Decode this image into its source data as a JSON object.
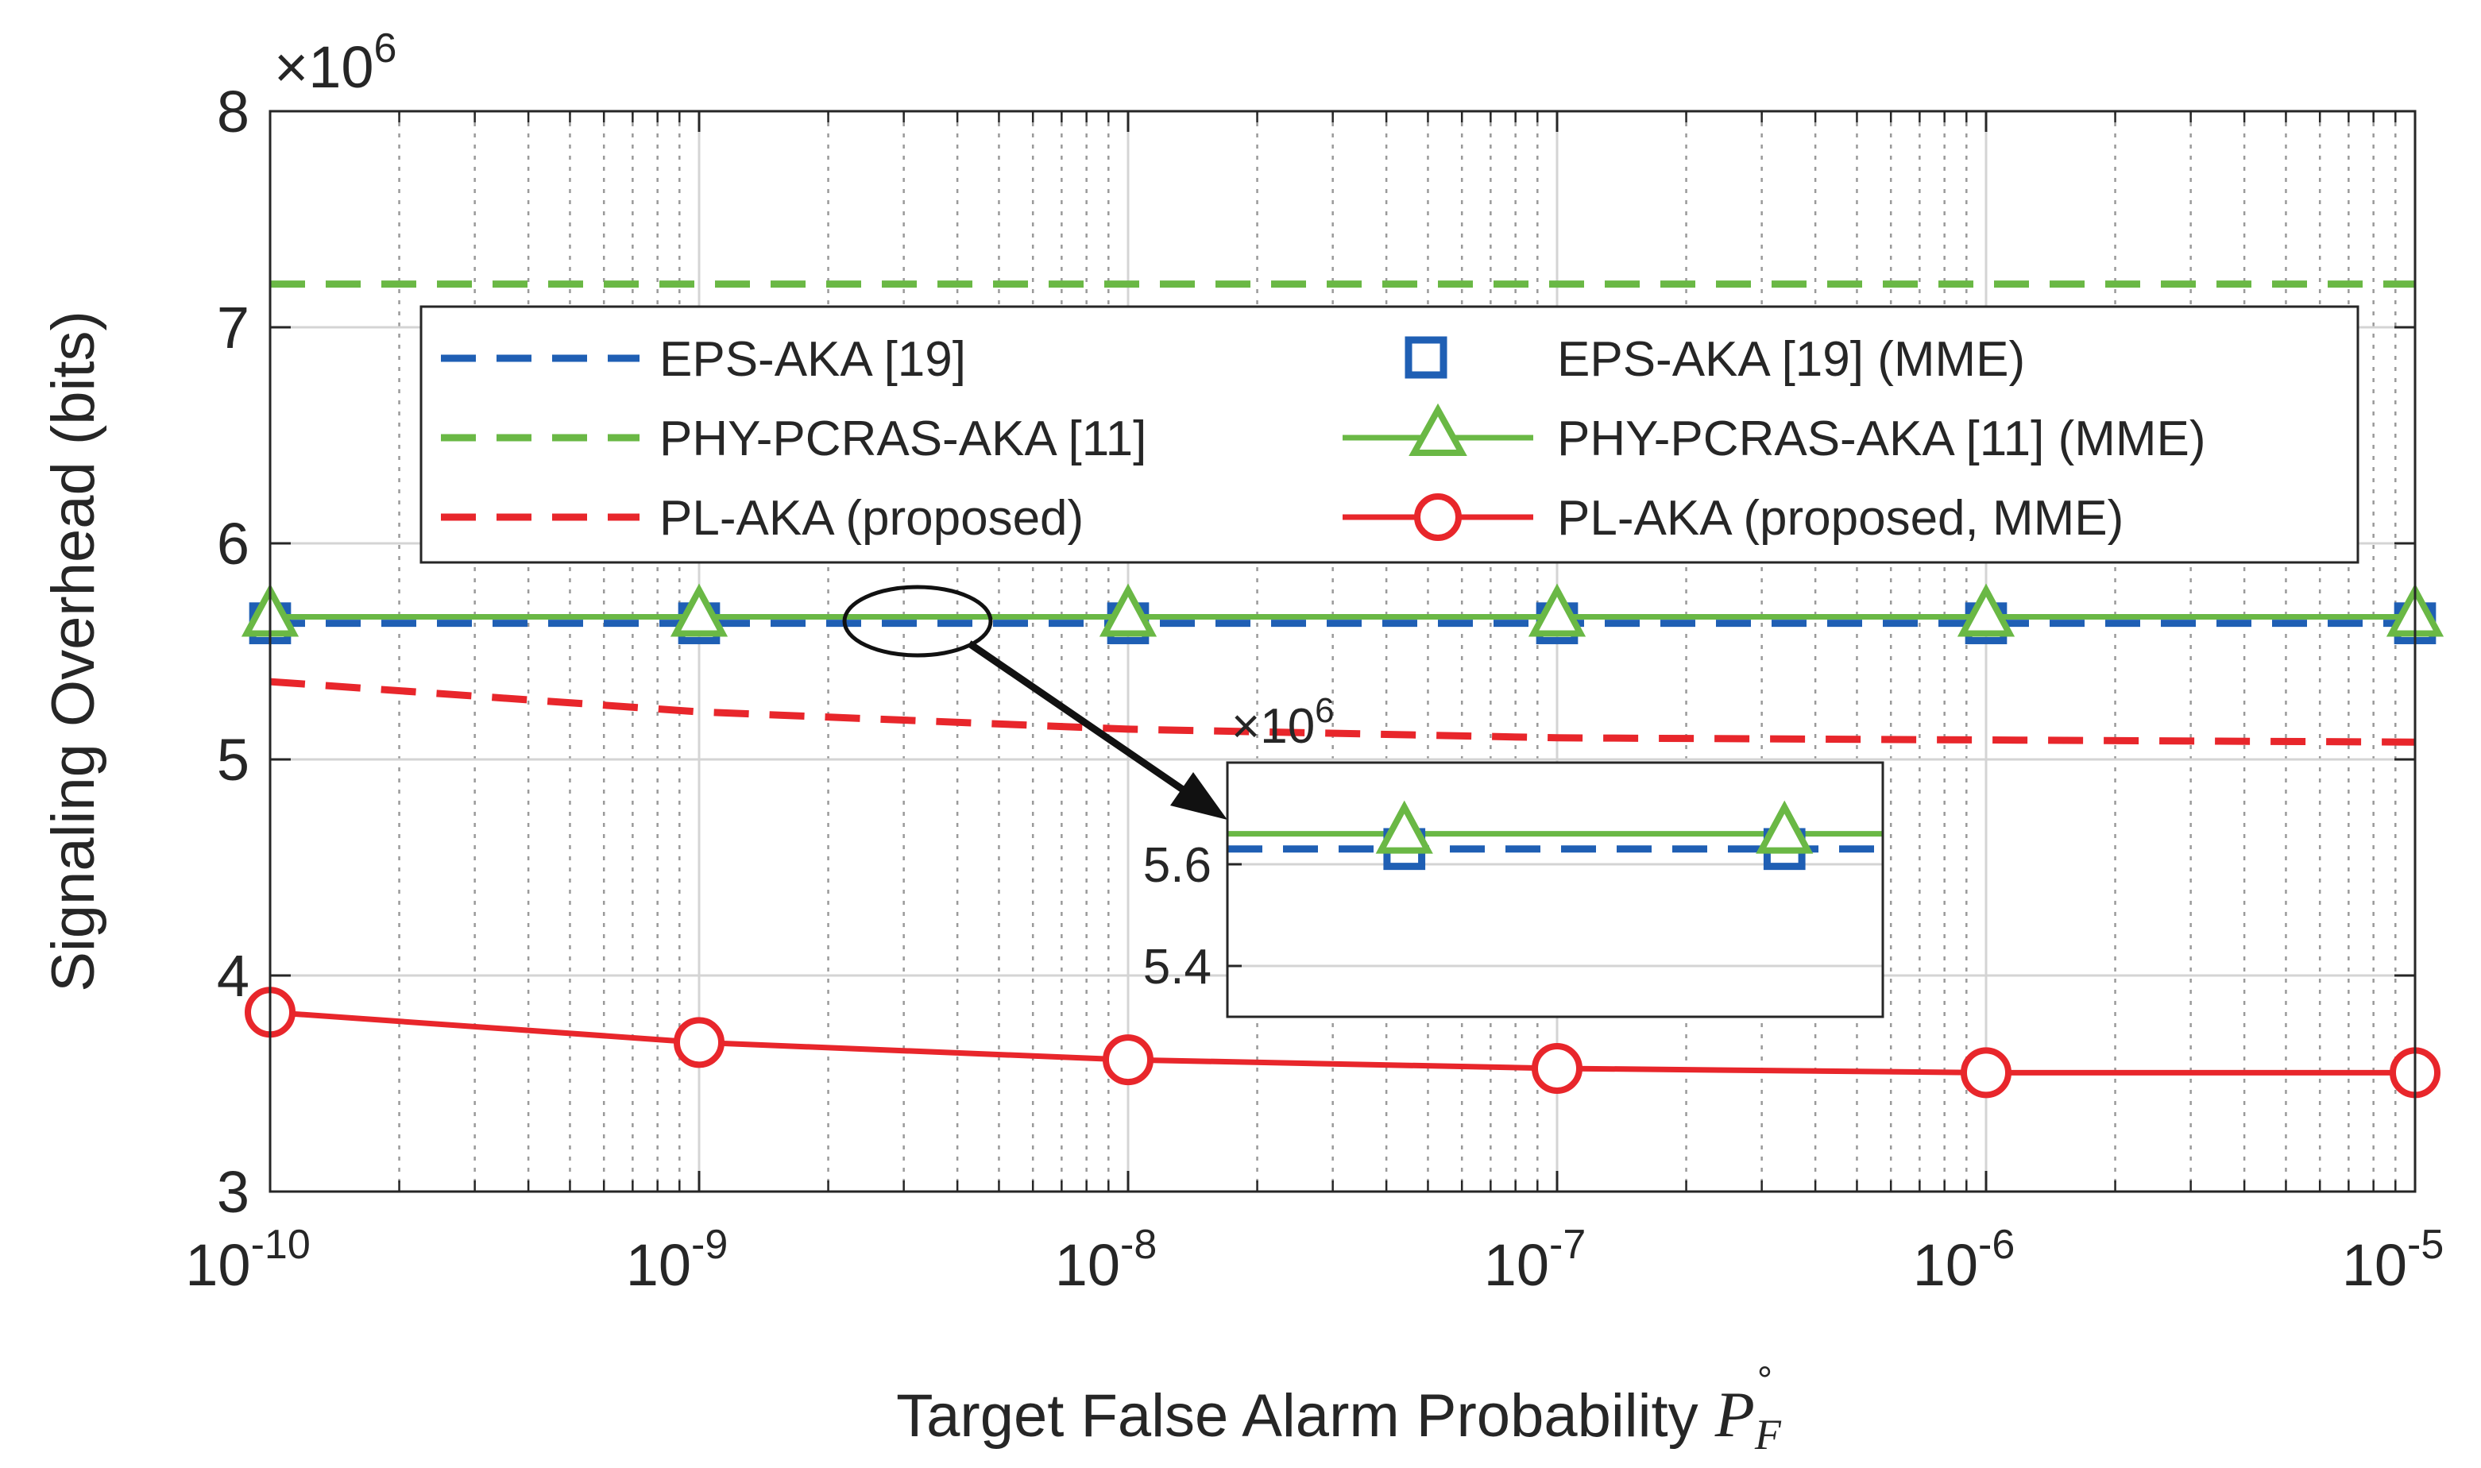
{
  "chart_data": {
    "type": "line",
    "xscale": "log",
    "x": [
      1e-10,
      1e-09,
      1e-08,
      1e-07,
      1e-06,
      1e-05
    ],
    "xtick_labels": [
      {
        "base": "10",
        "exp": "-10"
      },
      {
        "base": "10",
        "exp": "-9"
      },
      {
        "base": "10",
        "exp": "-8"
      },
      {
        "base": "10",
        "exp": "-7"
      },
      {
        "base": "10",
        "exp": "-6"
      },
      {
        "base": "10",
        "exp": "-5"
      }
    ],
    "xlim": [
      1e-10,
      1e-05
    ],
    "ylim": [
      3000000,
      8000000
    ],
    "yticks": [
      3,
      4,
      5,
      6,
      7,
      8
    ],
    "ytick_labels": [
      "3",
      "4",
      "5",
      "6",
      "7",
      "8"
    ],
    "y_multiplier": {
      "base": "×10",
      "exp": "6"
    },
    "xlabel": "Target False Alarm Probability ",
    "xlabel_symbol": {
      "main": "P",
      "sub": "F",
      "sup": "°"
    },
    "ylabel": "Signaling Overhead (bits)",
    "grid": true,
    "minor_grid": true,
    "legend_position": "upper-center, two columns",
    "series": [
      {
        "name": "EPS-AKA [19]",
        "color": "#1f5fb4",
        "style": "dashed",
        "marker": "none",
        "values": [
          5630000,
          5630000,
          5630000,
          5630000,
          5630000,
          5630000
        ]
      },
      {
        "name": "PHY-PCRAS-AKA [11]",
        "color": "#6ab845",
        "style": "dashed",
        "marker": "none",
        "values": [
          7200000,
          7200000,
          7200000,
          7200000,
          7200000,
          7200000
        ]
      },
      {
        "name": "PL-AKA (proposed)",
        "color": "#e8262b",
        "style": "dashed",
        "marker": "none",
        "values": [
          5360000,
          5220000,
          5140000,
          5100000,
          5090000,
          5080000
        ]
      },
      {
        "name": "EPS-AKA [19] (MME)",
        "color": "#1f5fb4",
        "style": "none",
        "marker": "square",
        "values": [
          5630000,
          5630000,
          5630000,
          5630000,
          5630000,
          5630000
        ]
      },
      {
        "name": "PHY-PCRAS-AKA [11] (MME)",
        "color": "#6ab845",
        "style": "solid",
        "marker": "triangle",
        "values": [
          5660000,
          5660000,
          5660000,
          5660000,
          5660000,
          5660000
        ]
      },
      {
        "name": "PL-AKA (proposed, MME)",
        "color": "#e8262b",
        "style": "solid",
        "marker": "circle",
        "values": [
          3830000,
          3690000,
          3610000,
          3570000,
          3550000,
          3550000
        ]
      }
    ],
    "inset": {
      "ylim": [
        5300000,
        5800000
      ],
      "yticks": [
        5.4,
        5.6
      ],
      "ytick_labels": [
        "5.4",
        "5.6"
      ],
      "y_multiplier": {
        "base": "×10",
        "exp": "6"
      },
      "series_shown": [
        "EPS-AKA [19]",
        "EPS-AKA [19] (MME)",
        "PHY-PCRAS-AKA [11] (MME)"
      ],
      "marker_positions": [
        0.27,
        0.85
      ]
    }
  }
}
